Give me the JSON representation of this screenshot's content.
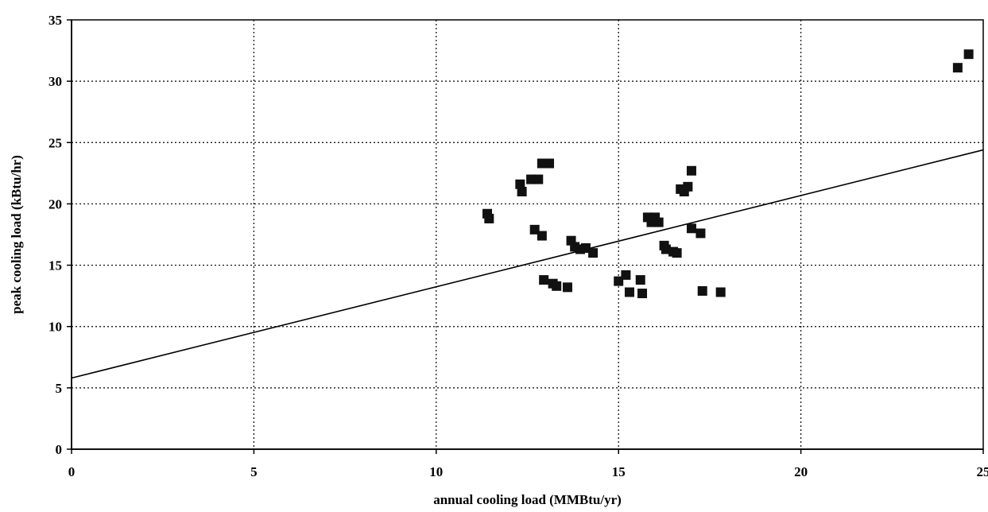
{
  "chart_data": {
    "type": "scatter",
    "title": "",
    "xlabel": "annual cooling load (MMBtu/yr)",
    "ylabel": "peak cooling load (kBtu/hr)",
    "xlim": [
      0,
      25
    ],
    "ylim": [
      0,
      35
    ],
    "x_ticks": [
      0,
      5,
      10,
      15,
      20,
      25
    ],
    "y_ticks": [
      0,
      5,
      10,
      15,
      20,
      25,
      30,
      35
    ],
    "x_tick_labels": [
      "0",
      "5",
      "10",
      "15",
      "20",
      "25"
    ],
    "y_tick_labels": [
      "0",
      "5",
      "10",
      "15",
      "20",
      "25",
      "30",
      "35"
    ],
    "grid": true,
    "legend": "none",
    "marker": "square",
    "colors": {
      "marker": "#111111",
      "line": "#000000",
      "grid": "#000000"
    },
    "series": [
      {
        "points": [
          [
            11.4,
            19.2
          ],
          [
            11.45,
            18.8
          ],
          [
            12.3,
            21.6
          ],
          [
            12.35,
            21.0
          ],
          [
            12.6,
            22.0
          ],
          [
            12.8,
            22.0
          ],
          [
            12.9,
            23.3
          ],
          [
            13.1,
            23.3
          ],
          [
            12.7,
            17.9
          ],
          [
            12.9,
            17.4
          ],
          [
            12.95,
            13.8
          ],
          [
            13.2,
            13.5
          ],
          [
            13.3,
            13.3
          ],
          [
            13.6,
            13.2
          ],
          [
            13.7,
            17.0
          ],
          [
            13.8,
            16.5
          ],
          [
            13.95,
            16.3
          ],
          [
            14.1,
            16.4
          ],
          [
            14.3,
            16.0
          ],
          [
            15.0,
            13.7
          ],
          [
            15.2,
            14.2
          ],
          [
            15.3,
            12.8
          ],
          [
            15.6,
            13.8
          ],
          [
            15.65,
            12.7
          ],
          [
            15.8,
            18.9
          ],
          [
            15.9,
            18.5
          ],
          [
            16.0,
            18.9
          ],
          [
            16.1,
            18.5
          ],
          [
            16.25,
            16.6
          ],
          [
            16.3,
            16.3
          ],
          [
            16.5,
            16.1
          ],
          [
            16.6,
            16.0
          ],
          [
            16.7,
            21.2
          ],
          [
            16.8,
            21.0
          ],
          [
            16.9,
            21.4
          ],
          [
            17.0,
            22.7
          ],
          [
            17.0,
            18.0
          ],
          [
            17.25,
            17.6
          ],
          [
            17.3,
            12.9
          ],
          [
            17.8,
            12.8
          ],
          [
            24.3,
            31.1
          ],
          [
            24.6,
            32.2
          ]
        ]
      }
    ],
    "trendline": {
      "x": [
        0,
        25
      ],
      "y": [
        5.8,
        24.4
      ]
    }
  }
}
